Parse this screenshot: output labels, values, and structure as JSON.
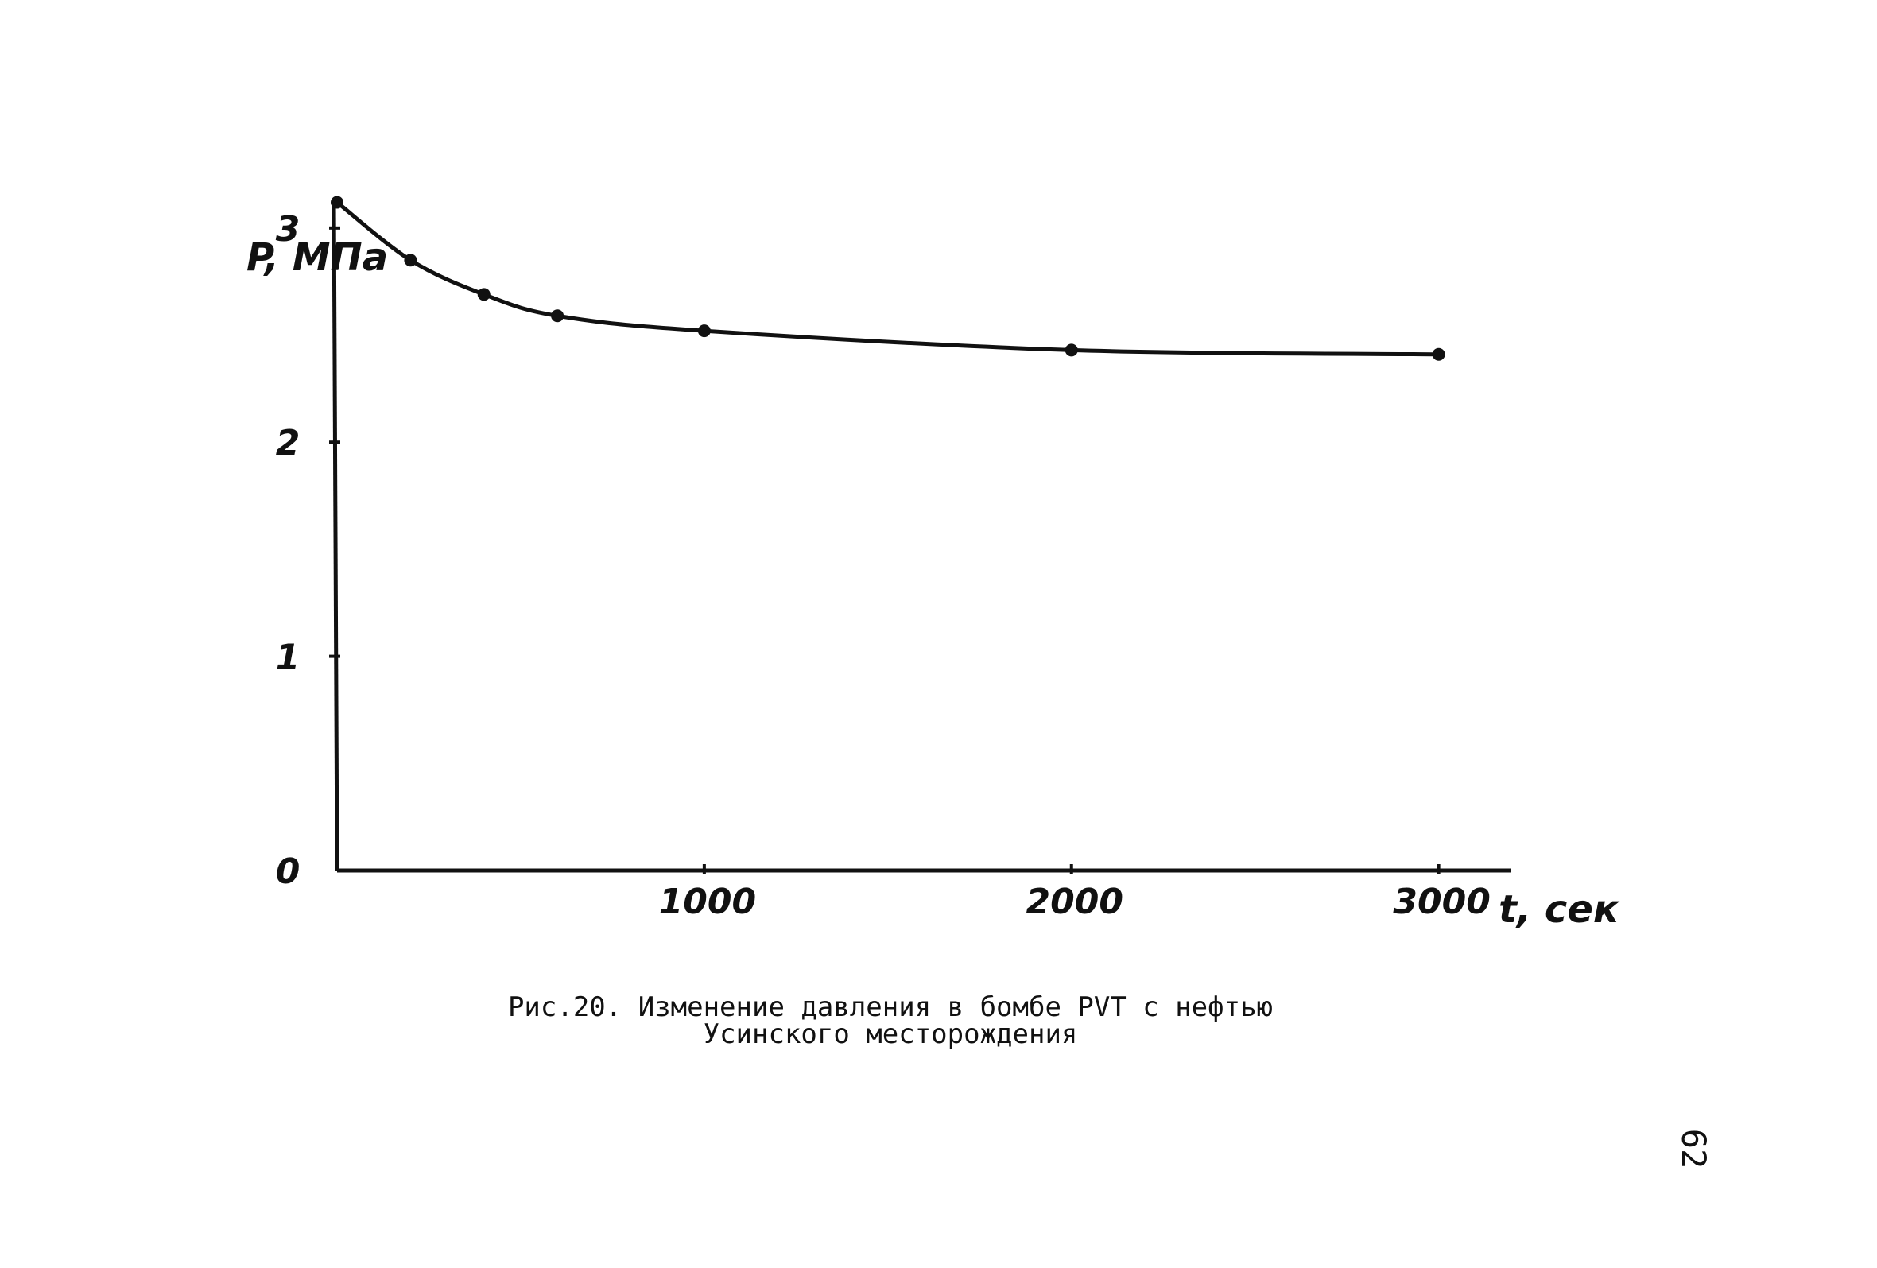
{
  "chart_data": {
    "type": "line",
    "xlabel": "t, сек",
    "ylabel": "P, МПа",
    "xlim": [
      0,
      3200
    ],
    "ylim": [
      0,
      3.3
    ],
    "xticks": [
      1000,
      2000,
      3000
    ],
    "xtick_labels": [
      "1000",
      "2000",
      "3000"
    ],
    "yticks": [
      0,
      1,
      2,
      3
    ],
    "ytick_labels": [
      "0",
      "1",
      "2",
      "3"
    ],
    "grid": false,
    "series": [
      {
        "x": [
          0,
          200,
          400,
          600,
          1000,
          2000,
          3000
        ],
        "y": [
          3.12,
          2.85,
          2.69,
          2.59,
          2.52,
          2.43,
          2.41
        ]
      }
    ],
    "colors": {
      "line": "#111111"
    }
  },
  "caption": {
    "line1": "Рис.20. Изменение давления в бомбе PVT с нефтью",
    "line2": "Усинского месторождения"
  },
  "page_number": "62"
}
